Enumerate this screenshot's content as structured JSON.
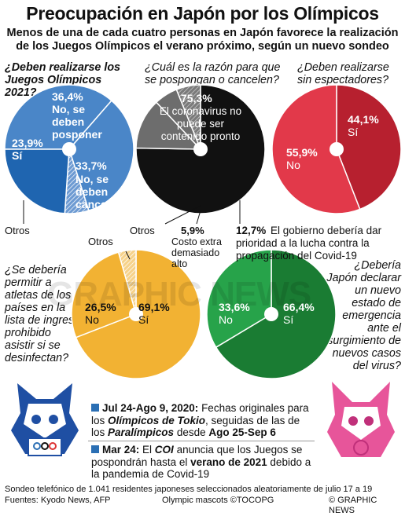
{
  "title": "Preocupación en Japón por los Olímpicos",
  "subtitle": "Menos de una de cada cuatro personas en Japón favorece la realización de los Juegos Olímpicos el verano próximo, según un nuevo sondeo",
  "questions": {
    "q1": "¿Deben realizarse los Juegos Olímpicos 2021?",
    "q2": "¿Cuál es la razón para que se pospongan o cancelen?",
    "q3": "¿Deben realizarse sin espectadores?",
    "q4": "¿Se debería permitir a atletas de los países en la lista de ingreso prohibido asistir si se desinfectan?",
    "q5": "¿Debería Japón declarar un nuevo estado de emergencia ante el surgimiento de nuevos casos del virus?"
  },
  "labels": {
    "q1_yes_pct": "23,9%",
    "q1_yes": "Sí",
    "q1_postpone_pct": "36,4%",
    "q1_postpone": "No, se deben posponer",
    "q1_cancel_pct": "33,7%",
    "q1_cancel": "No, se deben cancelar",
    "q1_other": "Otros",
    "q2_virus_pct": "75,3%",
    "q2_virus": "El coronavirus no puede ser contenido pronto",
    "q2_other": "Otros",
    "q2_cost_pct": "5,9%",
    "q2_cost": "Costo extra demasiado alto",
    "q2_prio_pct": "12,7%",
    "q2_prio": "El gobierno debería dar prioridad a la lucha contra la propagación del Covid-19",
    "q3_yes_pct": "44,1%",
    "q3_yes": "Sí",
    "q3_no_pct": "55,9%",
    "q3_no": "No",
    "q4_other": "Otros",
    "q4_no_pct": "26,5%",
    "q4_no": "No",
    "q4_yes_pct": "69,1%",
    "q4_yes": "Sí",
    "q5_no_pct": "33,6%",
    "q5_no": "No",
    "q5_yes_pct": "66,4%",
    "q5_yes": "Sí"
  },
  "watermark": "GRAPHIC NEWS",
  "timeline": {
    "item1_date": "Jul 24-Ago 9, 2020:",
    "item1_text_a": " Fechas originales para los ",
    "item1_em1": "Olímpicos de Tokio",
    "item1_text_b": ", seguidas de las de los ",
    "item1_em2": "Paralímpicos",
    "item1_text_c": " desde ",
    "item1_date2": "Ago 25-Sep 6",
    "item2_date": "Mar 24:",
    "item2_text_a": " El ",
    "item2_em": "COI",
    "item2_text_b": " anuncia que los Juegos se pospondrán hasta el ",
    "item2_bold": "verano de 2021",
    "item2_text_c": " debido a la pandemia de Covid-19"
  },
  "footer": {
    "survey": "Sondeo telefónico de 1.041 residentes japoneses seleccionados aleatoriamente de julio 17 a 19",
    "sources": "Fuentes: Kyodo News, AFP",
    "mascots": "Olympic mascots ©TOCOPG",
    "credit": "© GRAPHIC NEWS"
  },
  "colors": {
    "blue": "#4a86c8",
    "blue_dark": "#1f65b0",
    "black": "#111111",
    "gray": "#6d6d6d",
    "red": "#e2394a",
    "red_dark": "#b7202f",
    "yellow": "#f2b233",
    "green": "#27a34a",
    "green_dark": "#1a7c33"
  },
  "chart_data": [
    {
      "type": "pie",
      "title": "¿Deben realizarse los Juegos Olímpicos 2021?",
      "series": [
        {
          "values": [
            36.4,
            33.7,
            6.0,
            23.9
          ]
        }
      ],
      "categories": [
        "No, se deben posponer",
        "No, se deben cancelar",
        "Otros",
        "Sí"
      ]
    },
    {
      "type": "pie",
      "title": "¿Cuál es la razón para que se pospongan o cancelen?",
      "series": [
        {
          "values": [
            75.3,
            12.7,
            5.9,
            6.1
          ]
        }
      ],
      "categories": [
        "El coronavirus no puede ser contenido pronto",
        "El gobierno debería dar prioridad a la lucha contra la propagación del Covid-19",
        "Costo extra demasiado alto",
        "Otros"
      ]
    },
    {
      "type": "pie",
      "title": "¿Deben realizarse sin espectadores?",
      "series": [
        {
          "values": [
            44.1,
            55.9
          ]
        }
      ],
      "categories": [
        "Sí",
        "No"
      ]
    },
    {
      "type": "pie",
      "title": "¿Se debería permitir a atletas de los países en la lista de ingreso prohibido asistir si se desinfectan?",
      "series": [
        {
          "values": [
            69.1,
            26.5,
            4.4
          ]
        }
      ],
      "categories": [
        "Sí",
        "No",
        "Otros"
      ]
    },
    {
      "type": "pie",
      "title": "¿Debería Japón declarar un nuevo estado de emergencia ante el surgimiento de nuevos casos del virus?",
      "series": [
        {
          "values": [
            66.4,
            33.6
          ]
        }
      ],
      "categories": [
        "Sí",
        "No"
      ]
    }
  ]
}
